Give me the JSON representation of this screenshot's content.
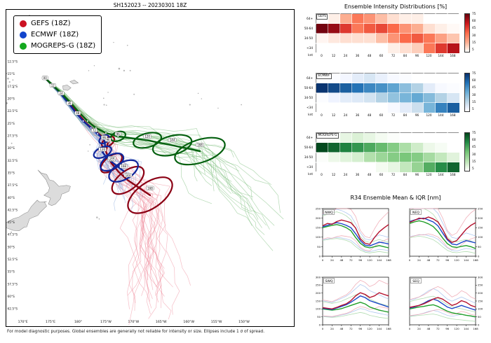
{
  "map": {
    "title": "SH152023 -- 20230301 18Z",
    "footer": "For model diagnostic purposes. Global ensembles are generally not reliable for intensity or size. Ellipses include 1 σ of spread.",
    "legend": {
      "items": [
        {
          "label": "GEFS (18Z)",
          "color": "#cc1122"
        },
        {
          "label": "ECMWF (18Z)",
          "color": "#1144cc"
        },
        {
          "label": "MOGREPS-G (18Z)",
          "color": "#13a81e"
        }
      ]
    },
    "lat_labels": [
      "12.5°S",
      "15°S",
      "17.5°S",
      "20°S",
      "22.5°S",
      "25°S",
      "27.5°S",
      "30°S",
      "32.5°S",
      "35°S",
      "37.5°S",
      "40°S",
      "42.5°S",
      "45°S",
      "47.5°S",
      "50°S",
      "52.5°S",
      "55°S",
      "57.5°S",
      "60°S",
      "62.5°S"
    ],
    "lon_labels": [
      "170°E",
      "175°E",
      "180°",
      "175°W",
      "170°W",
      "165°W",
      "160°W",
      "155°W",
      "150°W"
    ]
  },
  "intensity": {
    "title": "Ensemble Intensity Distributions [%]"
  },
  "r34": {
    "title": "R34 Ensemble Mean & IQR [nm]",
    "hours": [
      0,
      12,
      24,
      36,
      48,
      60,
      72,
      84,
      96,
      108,
      120,
      132,
      144,
      156,
      168
    ],
    "x_ticks": [
      0,
      24,
      48,
      72,
      96,
      120,
      144,
      168
    ],
    "colors": {
      "GEFS": "#b5122e",
      "ECMWF": "#1a46c8",
      "MOGREPS-G": "#1f9e28"
    },
    "lite": {
      "GEFS": "#f0a8b4",
      "ECMWF": "#a9c3ee",
      "MOGREPS-G": "#a8d8a8"
    },
    "iqr_hi": [
      1.32,
      14
    ],
    "iqr_lo": [
      0.62,
      -10
    ]
  },
  "chart_data": [
    {
      "type": "heatmap",
      "model": "GEFS",
      "colormap": "red",
      "rows": [
        "64+",
        "50-64",
        "34-50",
        "<34"
      ],
      "unit": "knt",
      "hours": [
        0,
        12,
        24,
        36,
        48,
        60,
        72,
        84,
        96,
        120,
        144,
        168
      ],
      "cbar_ticks": [
        75,
        60,
        45,
        30,
        15,
        5
      ],
      "values": [
        [
          0,
          5,
          25,
          45,
          35,
          20,
          10,
          5,
          5,
          0,
          0,
          0
        ],
        [
          97,
          88,
          65,
          45,
          55,
          60,
          50,
          35,
          25,
          10,
          5,
          2
        ],
        [
          3,
          7,
          10,
          10,
          10,
          20,
          35,
          50,
          55,
          45,
          30,
          18
        ],
        [
          0,
          0,
          0,
          0,
          0,
          0,
          5,
          10,
          15,
          45,
          65,
          80
        ]
      ]
    },
    {
      "type": "heatmap",
      "model": "ECMWF",
      "colormap": "blue",
      "rows": [
        "64+",
        "50-64",
        "34-50",
        "<34"
      ],
      "unit": "knt",
      "hours": [
        0,
        12,
        24,
        36,
        48,
        60,
        72,
        84,
        96,
        120,
        144,
        168
      ],
      "cbar_ticks": [
        75,
        60,
        45,
        30,
        15,
        5
      ],
      "values": [
        [
          0,
          2,
          6,
          12,
          16,
          10,
          4,
          2,
          0,
          0,
          0,
          0
        ],
        [
          98,
          90,
          82,
          74,
          66,
          62,
          54,
          40,
          28,
          12,
          4,
          2
        ],
        [
          2,
          8,
          12,
          14,
          18,
          28,
          38,
          46,
          52,
          42,
          28,
          16
        ],
        [
          0,
          0,
          0,
          0,
          0,
          0,
          4,
          12,
          20,
          46,
          68,
          82
        ]
      ]
    },
    {
      "type": "heatmap",
      "model": "MOGREPS-G",
      "colormap": "green",
      "rows": [
        "64+",
        "50-64",
        "34-50",
        "<34"
      ],
      "unit": "knt",
      "hours": [
        0,
        12,
        24,
        36,
        48,
        60,
        72,
        84,
        96,
        120,
        144,
        168
      ],
      "cbar_ticks": [
        75,
        60,
        45,
        30,
        15,
        5
      ],
      "values": [
        [
          0,
          4,
          10,
          14,
          10,
          5,
          2,
          0,
          0,
          0,
          0,
          0
        ],
        [
          98,
          88,
          78,
          70,
          62,
          54,
          44,
          30,
          18,
          8,
          4,
          0
        ],
        [
          2,
          8,
          12,
          16,
          28,
          36,
          44,
          48,
          44,
          32,
          22,
          12
        ],
        [
          0,
          0,
          0,
          0,
          0,
          5,
          10,
          22,
          38,
          60,
          74,
          88
        ]
      ]
    },
    {
      "type": "line",
      "label": "NWQ",
      "ylim": [
        0,
        250
      ],
      "yaxis": "left",
      "y_ticks": [
        0,
        50,
        100,
        150,
        200,
        250
      ],
      "series": {
        "GEFS": [
          160,
          172,
          168,
          182,
          190,
          184,
          176,
          148,
          92,
          68,
          62,
          98,
          128,
          148,
          166
        ],
        "ECMWF": [
          155,
          162,
          170,
          176,
          171,
          162,
          150,
          118,
          82,
          58,
          54,
          64,
          74,
          70,
          64
        ],
        "MOGREPS-G": [
          150,
          156,
          162,
          166,
          160,
          150,
          134,
          98,
          68,
          50,
          44,
          50,
          56,
          50,
          44
        ]
      }
    },
    {
      "type": "line",
      "label": "NEQ",
      "ylim": [
        0,
        250
      ],
      "yaxis": "right",
      "y_ticks": [
        0,
        50,
        100,
        150,
        200,
        250
      ],
      "series": {
        "GEFS": [
          178,
          188,
          200,
          196,
          206,
          196,
          180,
          142,
          92,
          72,
          82,
          112,
          142,
          162,
          176
        ],
        "ECMWF": [
          182,
          190,
          196,
          200,
          190,
          180,
          160,
          122,
          86,
          64,
          60,
          72,
          82,
          76,
          70
        ],
        "MOGREPS-G": [
          172,
          180,
          186,
          180,
          170,
          156,
          130,
          96,
          66,
          50,
          46,
          52,
          56,
          50,
          40
        ]
      }
    },
    {
      "type": "line",
      "label": "SWQ",
      "ylim": [
        0,
        300
      ],
      "yaxis": "left",
      "y_ticks": [
        0,
        50,
        100,
        150,
        200,
        250,
        300
      ],
      "series": {
        "GEFS": [
          108,
          104,
          100,
          110,
          122,
          132,
          152,
          182,
          202,
          192,
          172,
          182,
          202,
          192,
          182
        ],
        "ECMWF": [
          104,
          100,
          96,
          106,
          116,
          126,
          142,
          162,
          182,
          172,
          152,
          142,
          132,
          122,
          112
        ],
        "MOGREPS-G": [
          100,
          96,
          92,
          96,
          102,
          112,
          122,
          132,
          142,
          132,
          112,
          102,
          92,
          86,
          80
        ]
      }
    },
    {
      "type": "line",
      "label": "SEQ",
      "ylim": [
        0,
        300
      ],
      "yaxis": "right",
      "y_ticks": [
        0,
        50,
        100,
        150,
        200,
        250,
        300
      ],
      "series": {
        "GEFS": [
          110,
          116,
          122,
          132,
          146,
          162,
          172,
          162,
          142,
          122,
          132,
          152,
          142,
          122,
          112
        ],
        "ECMWF": [
          106,
          112,
          122,
          136,
          152,
          162,
          152,
          132,
          112,
          102,
          112,
          122,
          112,
          102,
          92
        ],
        "MOGREPS-G": [
          100,
          106,
          112,
          116,
          122,
          126,
          116,
          100,
          86,
          76,
          70,
          66,
          60,
          56,
          50
        ]
      }
    },
    {
      "type": "track_map",
      "labeled_hours": [
        0,
        12,
        24,
        36,
        48,
        72
      ],
      "models": [
        {
          "name": "GEFS",
          "member_color": "#ee8899",
          "mean_color": "#8b0014",
          "hours": [
            0,
            12,
            24,
            36,
            48,
            60,
            72,
            84,
            96,
            108,
            120,
            132,
            144,
            156,
            168
          ],
          "track": [
            [
              174.0,
              -15.8
            ],
            [
              175.4,
              -17.3
            ],
            [
              176.9,
              -18.9
            ],
            [
              178.4,
              -20.9
            ],
            [
              179.9,
              -22.9
            ],
            [
              181.4,
              -24.9
            ],
            [
              182.9,
              -26.4
            ],
            [
              184.3,
              -27.6
            ],
            [
              185.4,
              -28.7
            ],
            [
              185.0,
              -30.7
            ],
            [
              186.0,
              -33.0
            ],
            [
              187.3,
              -34.8
            ],
            [
              189.0,
              -36.5
            ],
            [
              191.0,
              -38.0
            ],
            [
              193.0,
              -39.5
            ]
          ],
          "ellipses": [
            {
              "h": 96,
              "lon": 185.4,
              "lat": -28.7,
              "rx": 1.3,
              "ry": 0.8,
              "rot": -35
            },
            {
              "h": 120,
              "lon": 186.0,
              "lat": -33.0,
              "rx": 2.3,
              "ry": 1.3,
              "rot": -40
            },
            {
              "h": 144,
              "lon": 189.0,
              "lat": -36.5,
              "rx": 3.4,
              "ry": 1.9,
              "rot": -38
            },
            {
              "h": 168,
              "lon": 193.0,
              "lat": -39.5,
              "rx": 4.6,
              "ry": 2.6,
              "rot": -35
            }
          ]
        },
        {
          "name": "ECMWF",
          "member_color": "#88aadd",
          "mean_color": "#10269b",
          "hours": [
            0,
            12,
            24,
            36,
            48,
            60,
            72,
            84,
            96,
            108,
            120,
            132,
            144,
            156,
            168
          ],
          "track": [
            [
              174.0,
              -15.8
            ],
            [
              175.3,
              -17.2
            ],
            [
              176.7,
              -18.8
            ],
            [
              178.1,
              -20.7
            ],
            [
              179.5,
              -22.7
            ],
            [
              180.9,
              -24.5
            ],
            [
              182.3,
              -25.9
            ],
            [
              183.5,
              -27.1
            ],
            [
              184.7,
              -28.2
            ],
            [
              184.9,
              -29.7
            ],
            [
              184.4,
              -30.8
            ],
            [
              185.1,
              -31.8
            ],
            [
              186.1,
              -32.8
            ],
            [
              187.1,
              -33.7
            ],
            [
              188.2,
              -34.6
            ]
          ],
          "ellipses": [
            {
              "h": 96,
              "lon": 184.7,
              "lat": -28.2,
              "rx": 1.0,
              "ry": 0.7,
              "rot": -35
            },
            {
              "h": 120,
              "lon": 184.4,
              "lat": -30.8,
              "rx": 1.7,
              "ry": 1.0,
              "rot": -25
            },
            {
              "h": 144,
              "lon": 186.1,
              "lat": -32.8,
              "rx": 2.3,
              "ry": 1.4,
              "rot": -30
            },
            {
              "h": 168,
              "lon": 188.2,
              "lat": -34.6,
              "rx": 2.9,
              "ry": 1.7,
              "rot": -30
            }
          ]
        },
        {
          "name": "MOGREPS-G",
          "member_color": "#77bb77",
          "mean_color": "#04600f",
          "hours": [
            0,
            12,
            24,
            36,
            48,
            60,
            72,
            84,
            96,
            108,
            120,
            132,
            144,
            156,
            168
          ],
          "track": [
            [
              174.0,
              -15.8
            ],
            [
              175.5,
              -17.4
            ],
            [
              177.1,
              -19.0
            ],
            [
              178.7,
              -20.9
            ],
            [
              180.2,
              -22.8
            ],
            [
              181.7,
              -24.5
            ],
            [
              183.2,
              -25.9
            ],
            [
              185.0,
              -26.9
            ],
            [
              187.2,
              -27.6
            ],
            [
              189.8,
              -28.0
            ],
            [
              192.5,
              -28.4
            ],
            [
              194.8,
              -28.9
            ],
            [
              197.0,
              -29.4
            ],
            [
              199.5,
              -30.0
            ],
            [
              202.0,
              -30.6
            ]
          ],
          "ellipses": [
            {
              "h": 96,
              "lon": 187.2,
              "lat": -27.6,
              "rx": 1.4,
              "ry": 0.9,
              "rot": -20
            },
            {
              "h": 120,
              "lon": 192.5,
              "lat": -28.4,
              "rx": 2.6,
              "ry": 1.4,
              "rot": -15
            },
            {
              "h": 144,
              "lon": 197.0,
              "lat": -29.4,
              "rx": 3.6,
              "ry": 1.9,
              "rot": -15
            },
            {
              "h": 168,
              "lon": 202.0,
              "lat": -30.6,
              "rx": 4.7,
              "ry": 2.3,
              "rot": -18
            }
          ]
        }
      ]
    }
  ]
}
